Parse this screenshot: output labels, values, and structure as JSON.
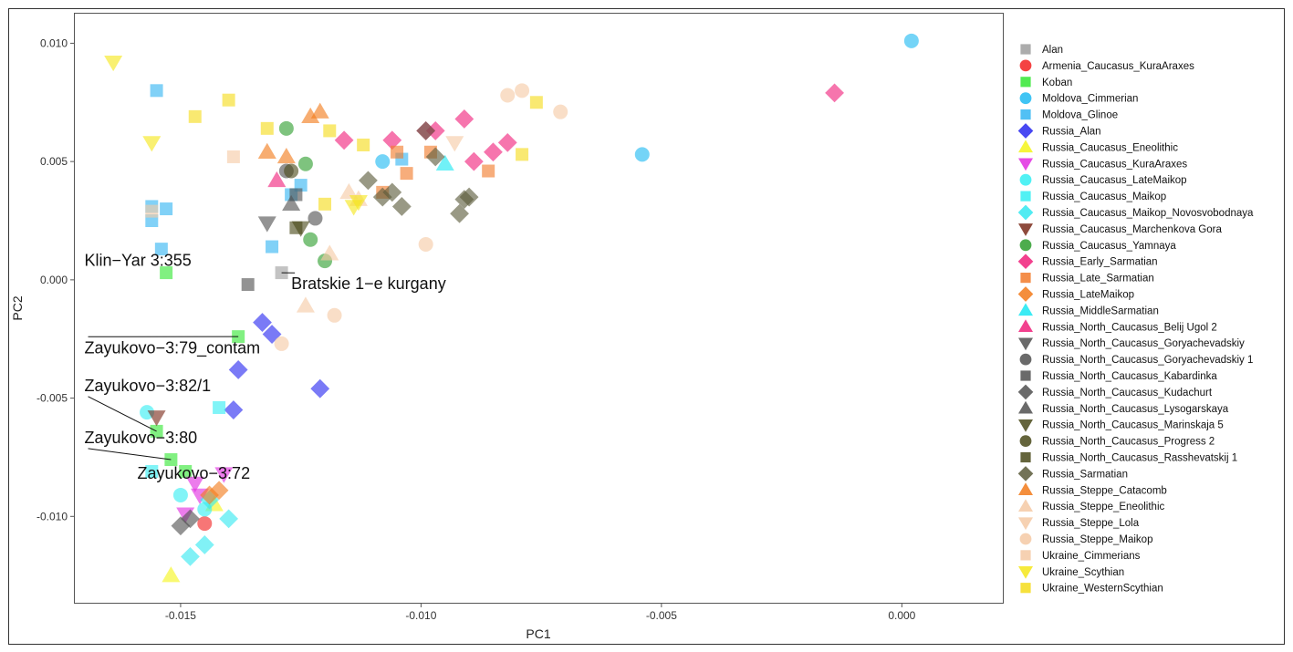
{
  "chart_data": {
    "type": "scatter",
    "title": "",
    "xlabel": "PC1",
    "ylabel": "PC2",
    "xlim": [
      -0.0172,
      0.0021
    ],
    "ylim": [
      -0.01365,
      0.01125
    ],
    "x_ticks": [
      {
        "value": -0.015,
        "label": "-0.015"
      },
      {
        "value": -0.01,
        "label": "-0.010"
      },
      {
        "value": -0.005,
        "label": "-0.005"
      },
      {
        "value": 0.0,
        "label": "0.000"
      }
    ],
    "y_ticks": [
      {
        "value": -0.01,
        "label": "-0.010"
      },
      {
        "value": -0.005,
        "label": "-0.005"
      },
      {
        "value": 0.0,
        "label": "0.000"
      },
      {
        "value": 0.005,
        "label": "0.005"
      },
      {
        "value": 0.01,
        "label": "0.010"
      }
    ],
    "grid": false,
    "legend_position": "right",
    "series": [
      {
        "name": "Alan",
        "shape": "square",
        "color": "#9e9e9e",
        "points": [
          [
            -0.0129,
            0.0003
          ]
        ]
      },
      {
        "name": "Armenia_Caucasus_KuraAraxes",
        "shape": "circle",
        "color": "#f22222",
        "points": [
          [
            -0.0145,
            -0.0103
          ]
        ]
      },
      {
        "name": "Koban",
        "shape": "square",
        "color": "#33e633",
        "points": [
          [
            -0.0153,
            0.0003
          ],
          [
            -0.0138,
            -0.0024
          ],
          [
            -0.0155,
            -0.0064
          ],
          [
            -0.0152,
            -0.0076
          ],
          [
            -0.0149,
            -0.0081
          ]
        ]
      },
      {
        "name": "Moldova_Cimmerian",
        "shape": "circle",
        "color": "#1fbaf2",
        "points": [
          [
            0.0002,
            0.0101
          ],
          [
            -0.0054,
            0.0053
          ],
          [
            -0.0108,
            0.005
          ]
        ]
      },
      {
        "name": "Moldova_Glinoe",
        "shape": "square",
        "color": "#33b5f2",
        "points": [
          [
            -0.0155,
            0.008
          ],
          [
            -0.0156,
            0.0031
          ],
          [
            -0.0156,
            0.0025
          ],
          [
            -0.0153,
            0.003
          ],
          [
            -0.0154,
            0.0013
          ],
          [
            -0.0127,
            0.0036
          ],
          [
            -0.0125,
            0.004
          ],
          [
            -0.0131,
            0.0014
          ],
          [
            -0.0104,
            0.0051
          ]
        ]
      },
      {
        "name": "Russia_Alan",
        "shape": "diamond",
        "color": "#2828f0",
        "points": [
          [
            -0.0133,
            -0.0018
          ],
          [
            -0.0131,
            -0.0023
          ],
          [
            -0.0138,
            -0.0038
          ],
          [
            -0.0139,
            -0.0055
          ],
          [
            -0.0121,
            -0.0046
          ]
        ]
      },
      {
        "name": "Russia_Caucasus_Eneolithic",
        "shape": "triangle",
        "color": "#f5f51a",
        "points": [
          [
            -0.0152,
            -0.0125
          ],
          [
            -0.0143,
            -0.0095
          ]
        ]
      },
      {
        "name": "Russia_Caucasus_KuraAraxes",
        "shape": "triangle-down",
        "color": "#e02ce0",
        "points": [
          [
            -0.0149,
            -0.0099
          ],
          [
            -0.0147,
            -0.0086
          ],
          [
            -0.0141,
            -0.0082
          ],
          [
            -0.0146,
            -0.0091
          ]
        ]
      },
      {
        "name": "Russia_Caucasus_LateMaikop",
        "shape": "circle",
        "color": "#33eef2",
        "points": [
          [
            -0.0157,
            -0.0056
          ],
          [
            -0.015,
            -0.0091
          ],
          [
            -0.0145,
            -0.0097
          ]
        ]
      },
      {
        "name": "Russia_Caucasus_Maikop",
        "shape": "square",
        "color": "#33eef2",
        "points": [
          [
            -0.0142,
            -0.0054
          ],
          [
            -0.0156,
            -0.0081
          ]
        ]
      },
      {
        "name": "Russia_Caucasus_Maikop_Novosvobodnaya",
        "shape": "diamond",
        "color": "#33e8f0",
        "points": [
          [
            -0.0148,
            -0.0117
          ],
          [
            -0.0145,
            -0.0112
          ],
          [
            -0.014,
            -0.0101
          ],
          [
            -0.0144,
            -0.0093
          ]
        ]
      },
      {
        "name": "Russia_Caucasus_Marchenkova Gora",
        "shape": "triangle-down",
        "color": "#7a2a1a",
        "points": [
          [
            -0.0155,
            -0.0058
          ]
        ]
      },
      {
        "name": "Russia_Caucasus_Yamnaya",
        "shape": "circle",
        "color": "#2e9e2e",
        "points": [
          [
            -0.0128,
            0.0064
          ],
          [
            -0.0124,
            0.0049
          ],
          [
            -0.0123,
            0.0017
          ],
          [
            -0.012,
            0.0008
          ]
        ]
      },
      {
        "name": "Russia_Early_Sarmatian",
        "shape": "diamond",
        "color": "#f0207a",
        "points": [
          [
            -0.0014,
            0.0079
          ],
          [
            -0.0116,
            0.0059
          ],
          [
            -0.0106,
            0.0059
          ],
          [
            -0.0099,
            0.0063
          ],
          [
            -0.0097,
            0.0063
          ],
          [
            -0.0091,
            0.0068
          ],
          [
            -0.0089,
            0.005
          ],
          [
            -0.0085,
            0.0054
          ],
          [
            -0.0082,
            0.0058
          ]
        ]
      },
      {
        "name": "Russia_Late_Sarmatian",
        "shape": "square",
        "color": "#f27a2a",
        "points": [
          [
            -0.0108,
            0.0037
          ],
          [
            -0.0105,
            0.0054
          ],
          [
            -0.0103,
            0.0045
          ],
          [
            -0.0098,
            0.0054
          ],
          [
            -0.0086,
            0.0046
          ]
        ]
      },
      {
        "name": "Russia_LateMaikop",
        "shape": "diamond",
        "color": "#f27a1a",
        "points": [
          [
            -0.0144,
            -0.0091
          ],
          [
            -0.0142,
            -0.0089
          ]
        ]
      },
      {
        "name": "Russia_MiddleSarmatian",
        "shape": "triangle",
        "color": "#1ae8f2",
        "points": [
          [
            -0.0095,
            0.0049
          ]
        ]
      },
      {
        "name": "Russia_North_Caucasus_Belij Ugol 2",
        "shape": "triangle",
        "color": "#f0207a",
        "points": [
          [
            -0.013,
            0.0042
          ]
        ]
      },
      {
        "name": "Russia_North_Caucasus_Goryachevadskiy",
        "shape": "triangle-down",
        "color": "#505050",
        "points": [
          [
            -0.0132,
            0.0024
          ]
        ]
      },
      {
        "name": "Russia_North_Caucasus_Goryachevadskiy 1",
        "shape": "circle",
        "color": "#505050",
        "points": [
          [
            -0.0128,
            0.0046
          ],
          [
            -0.0122,
            0.0026
          ]
        ]
      },
      {
        "name": "Russia_North_Caucasus_Kabardinka",
        "shape": "square",
        "color": "#505050",
        "points": [
          [
            -0.0136,
            -0.0002
          ],
          [
            -0.0126,
            0.0036
          ]
        ]
      },
      {
        "name": "Russia_North_Caucasus_Kudachurt",
        "shape": "diamond",
        "color": "#505050",
        "points": [
          [
            -0.015,
            -0.0104
          ],
          [
            -0.0148,
            -0.0101
          ]
        ]
      },
      {
        "name": "Russia_North_Caucasus_Lysogarskaya",
        "shape": "triangle",
        "color": "#505050",
        "points": [
          [
            -0.0127,
            0.0032
          ]
        ]
      },
      {
        "name": "Russia_North_Caucasus_Marinskaja 5",
        "shape": "triangle-down",
        "color": "#4a4a1a",
        "points": [
          [
            -0.0125,
            0.0022
          ]
        ]
      },
      {
        "name": "Russia_North_Caucasus_Progress 2",
        "shape": "circle",
        "color": "#4a4a1a",
        "points": [
          [
            -0.0127,
            0.0046
          ]
        ]
      },
      {
        "name": "Russia_North_Caucasus_Rasshevatskij 1",
        "shape": "square",
        "color": "#4a4a1a",
        "points": [
          [
            -0.0126,
            0.0022
          ]
        ]
      },
      {
        "name": "Russia_Sarmatian",
        "shape": "diamond",
        "color": "#5a5a3a",
        "points": [
          [
            -0.0111,
            0.0042
          ],
          [
            -0.0108,
            0.0035
          ],
          [
            -0.0104,
            0.0031
          ],
          [
            -0.0099,
            0.0063
          ],
          [
            -0.0097,
            0.0052
          ],
          [
            -0.0092,
            0.0028
          ],
          [
            -0.0091,
            0.0034
          ],
          [
            -0.009,
            0.0035
          ],
          [
            -0.0106,
            0.0037
          ]
        ]
      },
      {
        "name": "Russia_Steppe_Catacomb",
        "shape": "triangle",
        "color": "#f27a1a",
        "points": [
          [
            -0.0132,
            0.0054
          ],
          [
            -0.0128,
            0.0052
          ],
          [
            -0.0123,
            0.0069
          ],
          [
            -0.0121,
            0.0071
          ]
        ]
      },
      {
        "name": "Russia_Steppe_Eneolithic",
        "shape": "triangle",
        "color": "#f5c9a5",
        "points": [
          [
            -0.0115,
            0.0037
          ],
          [
            -0.0113,
            0.0034
          ],
          [
            -0.0119,
            0.0011
          ],
          [
            -0.0124,
            -0.0011
          ]
        ]
      },
      {
        "name": "Russia_Steppe_Lola",
        "shape": "triangle-down",
        "color": "#f5c9a5",
        "points": [
          [
            -0.0093,
            0.0058
          ]
        ]
      },
      {
        "name": "Russia_Steppe_Maikop",
        "shape": "circle",
        "color": "#f5c9a5",
        "points": [
          [
            -0.0082,
            0.0078
          ],
          [
            -0.0079,
            0.008
          ],
          [
            -0.0071,
            0.0071
          ],
          [
            -0.0099,
            0.0015
          ],
          [
            -0.0118,
            -0.0015
          ],
          [
            -0.0129,
            -0.0027
          ]
        ]
      },
      {
        "name": "Ukraine_Cimmerians",
        "shape": "square",
        "color": "#f5c9a5",
        "points": [
          [
            -0.0156,
            0.0029
          ],
          [
            -0.0139,
            0.0052
          ]
        ]
      },
      {
        "name": "Ukraine_Scythian",
        "shape": "triangle-down",
        "color": "#f5e61a",
        "points": [
          [
            -0.0164,
            0.0092
          ],
          [
            -0.0156,
            0.0058
          ],
          [
            -0.0114,
            0.0031
          ],
          [
            -0.0113,
            0.0033
          ]
        ]
      },
      {
        "name": "Ukraine_WesternScythian",
        "shape": "square",
        "color": "#f5dc1a",
        "points": [
          [
            -0.0147,
            0.0069
          ],
          [
            -0.014,
            0.0076
          ],
          [
            -0.0132,
            0.0064
          ],
          [
            -0.012,
            0.0032
          ],
          [
            -0.0119,
            0.0063
          ],
          [
            -0.0112,
            0.0057
          ],
          [
            -0.0079,
            0.0053
          ],
          [
            -0.0076,
            0.0075
          ]
        ]
      }
    ],
    "annotations": [
      {
        "text": "Klin−Yar 3:355",
        "point": [
          -0.0153,
          0.0003
        ],
        "text_at": [
          -0.017,
          0.0006
        ],
        "anchor": "start",
        "leader": false
      },
      {
        "text": "Bratskie 1−e kurgany",
        "point": [
          -0.0129,
          0.0003
        ],
        "text_at": [
          -0.0127,
          -0.0004
        ],
        "anchor": "start",
        "leader": true
      },
      {
        "text": "Zayukovo−3:79_contam",
        "point": [
          -0.0138,
          -0.0024
        ],
        "text_at": [
          -0.017,
          -0.0031
        ],
        "anchor": "start",
        "leader": true
      },
      {
        "text": "Zayukovo−3:82/1",
        "point": [
          -0.0155,
          -0.0064
        ],
        "text_at": [
          -0.017,
          -0.0047
        ],
        "anchor": "start",
        "leader": true
      },
      {
        "text": "Zayukovo−3:80",
        "point": [
          -0.0152,
          -0.0076
        ],
        "text_at": [
          -0.017,
          -0.0069
        ],
        "anchor": "start",
        "leader": true
      },
      {
        "text": "Zayukovo−3:72",
        "point": [
          -0.0149,
          -0.0081
        ],
        "text_at": [
          -0.0159,
          -0.0084
        ],
        "anchor": "start",
        "leader": false
      }
    ]
  }
}
